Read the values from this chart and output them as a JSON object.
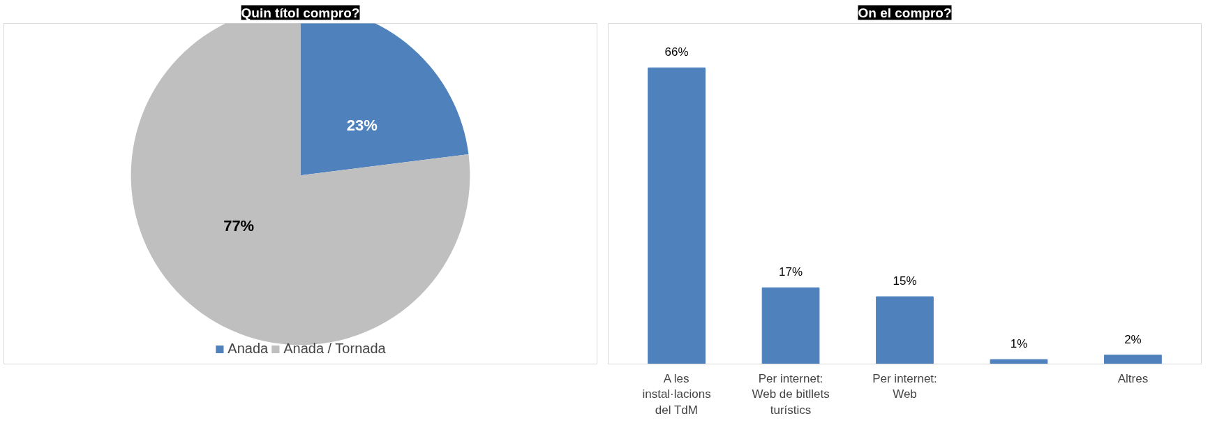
{
  "chart_data": [
    {
      "type": "pie",
      "title": "Quin títol compro?",
      "categories": [
        "Anada",
        "Anada / Tornada"
      ],
      "values": [
        23,
        77
      ],
      "colors": [
        "#4f81bd",
        "#bfbfbf"
      ],
      "value_labels": [
        "23%",
        "77%"
      ],
      "legend": "bottom"
    },
    {
      "type": "bar",
      "title": "On el compro?",
      "categories": [
        "A les instal·lacions del TdM",
        "Per internet: Web de bitllets turístics",
        "Per internet: Web",
        null,
        "Altres"
      ],
      "values": [
        66,
        17,
        15,
        1,
        2
      ],
      "color": "#4f81bd",
      "value_labels": [
        "66%",
        "17%",
        "15%",
        "1%",
        "2%"
      ],
      "grid": false
    }
  ]
}
